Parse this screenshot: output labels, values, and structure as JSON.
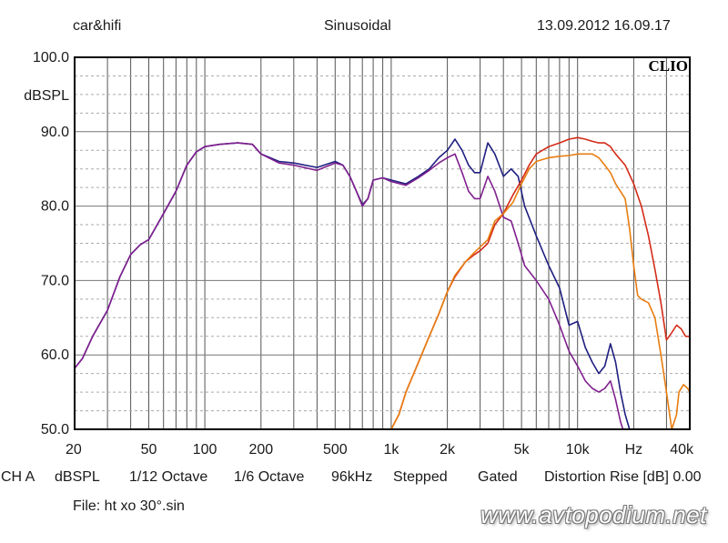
{
  "header": {
    "left": "car&hifi",
    "center": "Sinusoidal",
    "right": "13.09.2012 16.09.17"
  },
  "logo": "CLIO",
  "footer": {
    "channel": "CH A",
    "unit": "dBSPL",
    "smoothing": "1/12 Octave",
    "resolution": "1/6 Octave",
    "rate": "96kHz",
    "mode": "Stepped",
    "gating": "Gated",
    "distortion": "Distortion Rise [dB] 0.00"
  },
  "file": "File: ht xo 30°.sin",
  "watermark": "www.avtopodium.net",
  "chart_data": {
    "type": "line",
    "xscale": "log",
    "xlim": [
      20,
      40000
    ],
    "ylim": [
      50,
      100
    ],
    "ylabel": "dBSPL",
    "xunit_label": "Hz",
    "grid": true,
    "x_tick_labels": [
      {
        "v": 20,
        "t": "20"
      },
      {
        "v": 50,
        "t": "50"
      },
      {
        "v": 100,
        "t": "100"
      },
      {
        "v": 200,
        "t": "200"
      },
      {
        "v": 500,
        "t": "500"
      },
      {
        "v": 1000,
        "t": "1k"
      },
      {
        "v": 2000,
        "t": "2k"
      },
      {
        "v": 5000,
        "t": "5k"
      },
      {
        "v": 10000,
        "t": "10k"
      },
      {
        "v": 20000,
        "t": "Hz"
      },
      {
        "v": 40000,
        "t": "40k"
      }
    ],
    "y_tick_labels": [
      {
        "v": 100,
        "t": "100.0"
      },
      {
        "v": 90,
        "t": "90.0"
      },
      {
        "v": 80,
        "t": "80.0"
      },
      {
        "v": 70,
        "t": "70.0"
      },
      {
        "v": 60,
        "t": "60.0"
      },
      {
        "v": 50,
        "t": "50.0"
      }
    ],
    "series": [
      {
        "color": "#1f1f80",
        "points": [
          [
            20,
            58.2
          ],
          [
            22,
            59.5
          ],
          [
            25,
            62.5
          ],
          [
            30,
            66
          ],
          [
            35,
            70.5
          ],
          [
            40,
            73.5
          ],
          [
            45,
            74.8
          ],
          [
            50,
            75.5
          ],
          [
            60,
            79
          ],
          [
            70,
            82
          ],
          [
            80,
            85.5
          ],
          [
            90,
            87.3
          ],
          [
            100,
            88
          ],
          [
            120,
            88.3
          ],
          [
            150,
            88.5
          ],
          [
            180,
            88.3
          ],
          [
            200,
            87
          ],
          [
            250,
            86
          ],
          [
            300,
            85.8
          ],
          [
            400,
            85.2
          ],
          [
            500,
            86
          ],
          [
            550,
            85.5
          ],
          [
            600,
            84
          ],
          [
            650,
            82
          ],
          [
            700,
            80.2
          ],
          [
            750,
            81
          ],
          [
            800,
            83.5
          ],
          [
            900,
            83.8
          ],
          [
            1000,
            83.5
          ],
          [
            1200,
            83
          ],
          [
            1400,
            84
          ],
          [
            1600,
            85
          ],
          [
            1800,
            86.5
          ],
          [
            2000,
            87.5
          ],
          [
            2200,
            89
          ],
          [
            2400,
            87.5
          ],
          [
            2600,
            85.5
          ],
          [
            2800,
            84.5
          ],
          [
            3000,
            84.5
          ],
          [
            3300,
            88.5
          ],
          [
            3600,
            87
          ],
          [
            4000,
            84
          ],
          [
            4400,
            85
          ],
          [
            4800,
            84
          ],
          [
            5200,
            80
          ],
          [
            6000,
            76
          ],
          [
            7000,
            72
          ],
          [
            8000,
            69
          ],
          [
            9000,
            64
          ],
          [
            10000,
            64.5
          ],
          [
            11000,
            61
          ],
          [
            12000,
            59
          ],
          [
            13000,
            57.5
          ],
          [
            14000,
            58.5
          ],
          [
            15000,
            61.5
          ],
          [
            16000,
            59
          ],
          [
            17000,
            55
          ],
          [
            18000,
            52
          ],
          [
            19000,
            50
          ]
        ]
      },
      {
        "color": "#80208f",
        "points": [
          [
            20,
            58.2
          ],
          [
            22,
            59.5
          ],
          [
            25,
            62.5
          ],
          [
            30,
            66
          ],
          [
            35,
            70.5
          ],
          [
            40,
            73.5
          ],
          [
            45,
            74.8
          ],
          [
            50,
            75.5
          ],
          [
            60,
            79
          ],
          [
            70,
            82
          ],
          [
            80,
            85.5
          ],
          [
            90,
            87.3
          ],
          [
            100,
            88
          ],
          [
            120,
            88.3
          ],
          [
            150,
            88.5
          ],
          [
            180,
            88.3
          ],
          [
            200,
            87
          ],
          [
            250,
            85.8
          ],
          [
            300,
            85.5
          ],
          [
            400,
            84.8
          ],
          [
            500,
            85.8
          ],
          [
            550,
            85.5
          ],
          [
            600,
            84
          ],
          [
            650,
            82
          ],
          [
            700,
            80
          ],
          [
            750,
            81
          ],
          [
            800,
            83.5
          ],
          [
            900,
            83.8
          ],
          [
            1000,
            83.3
          ],
          [
            1200,
            82.8
          ],
          [
            1400,
            83.8
          ],
          [
            1600,
            84.8
          ],
          [
            1800,
            85.8
          ],
          [
            2000,
            86.5
          ],
          [
            2200,
            87
          ],
          [
            2400,
            84.5
          ],
          [
            2600,
            82
          ],
          [
            2800,
            81
          ],
          [
            3000,
            81
          ],
          [
            3300,
            84
          ],
          [
            3600,
            82
          ],
          [
            4000,
            78.5
          ],
          [
            4400,
            78
          ],
          [
            4800,
            75
          ],
          [
            5200,
            72
          ],
          [
            6000,
            70
          ],
          [
            7000,
            67.5
          ],
          [
            8000,
            64
          ],
          [
            9000,
            60.5
          ],
          [
            10000,
            58.5
          ],
          [
            11000,
            56.5
          ],
          [
            12000,
            55.5
          ],
          [
            13000,
            55
          ],
          [
            14000,
            55.5
          ],
          [
            15000,
            56.5
          ],
          [
            16000,
            54
          ],
          [
            17000,
            51
          ],
          [
            17500,
            50
          ]
        ]
      },
      {
        "color": "#d42b18",
        "points": [
          [
            1000,
            50
          ],
          [
            1100,
            52
          ],
          [
            1200,
            55
          ],
          [
            1400,
            59
          ],
          [
            1600,
            62.5
          ],
          [
            1800,
            65.5
          ],
          [
            2000,
            68.5
          ],
          [
            2200,
            70.5
          ],
          [
            2500,
            72.5
          ],
          [
            2800,
            73.5
          ],
          [
            3000,
            74
          ],
          [
            3300,
            75
          ],
          [
            3600,
            77.5
          ],
          [
            4000,
            79
          ],
          [
            4500,
            81.5
          ],
          [
            5000,
            83.5
          ],
          [
            5500,
            85.5
          ],
          [
            6000,
            87
          ],
          [
            7000,
            88
          ],
          [
            8000,
            88.5
          ],
          [
            9000,
            89
          ],
          [
            10000,
            89.2
          ],
          [
            11000,
            89
          ],
          [
            12000,
            88.7
          ],
          [
            13000,
            88.5
          ],
          [
            14000,
            88.5
          ],
          [
            15000,
            88
          ],
          [
            16000,
            87
          ],
          [
            18000,
            85.5
          ],
          [
            20000,
            83
          ],
          [
            22000,
            80
          ],
          [
            24000,
            76
          ],
          [
            26000,
            71.5
          ],
          [
            28000,
            67
          ],
          [
            30000,
            62
          ],
          [
            32000,
            63
          ],
          [
            34000,
            64
          ],
          [
            36000,
            63.5
          ],
          [
            38000,
            62.5
          ],
          [
            40000,
            62.5
          ]
        ]
      },
      {
        "color": "#e87d10",
        "points": [
          [
            1000,
            50
          ],
          [
            1100,
            52
          ],
          [
            1200,
            55
          ],
          [
            1400,
            59
          ],
          [
            1600,
            62.5
          ],
          [
            1800,
            65.5
          ],
          [
            2000,
            68.5
          ],
          [
            2200,
            70.7
          ],
          [
            2500,
            72.5
          ],
          [
            2800,
            73.8
          ],
          [
            3000,
            74.5
          ],
          [
            3300,
            75.5
          ],
          [
            3600,
            78
          ],
          [
            4000,
            79
          ],
          [
            4500,
            80.5
          ],
          [
            5000,
            83
          ],
          [
            5500,
            85
          ],
          [
            6000,
            86
          ],
          [
            7000,
            86.5
          ],
          [
            8000,
            86.7
          ],
          [
            9000,
            86.8
          ],
          [
            10000,
            87
          ],
          [
            12000,
            87
          ],
          [
            13000,
            86.5
          ],
          [
            14000,
            85.5
          ],
          [
            15000,
            84.5
          ],
          [
            16000,
            83
          ],
          [
            18000,
            81
          ],
          [
            19000,
            77
          ],
          [
            20000,
            72
          ],
          [
            21000,
            68
          ],
          [
            22000,
            67.5
          ],
          [
            24000,
            67
          ],
          [
            26000,
            65
          ],
          [
            28000,
            60
          ],
          [
            30000,
            55
          ],
          [
            32000,
            50
          ],
          [
            34000,
            52
          ],
          [
            35000,
            55
          ],
          [
            37000,
            56
          ],
          [
            39000,
            55.5
          ],
          [
            40000,
            55
          ]
        ]
      }
    ]
  }
}
